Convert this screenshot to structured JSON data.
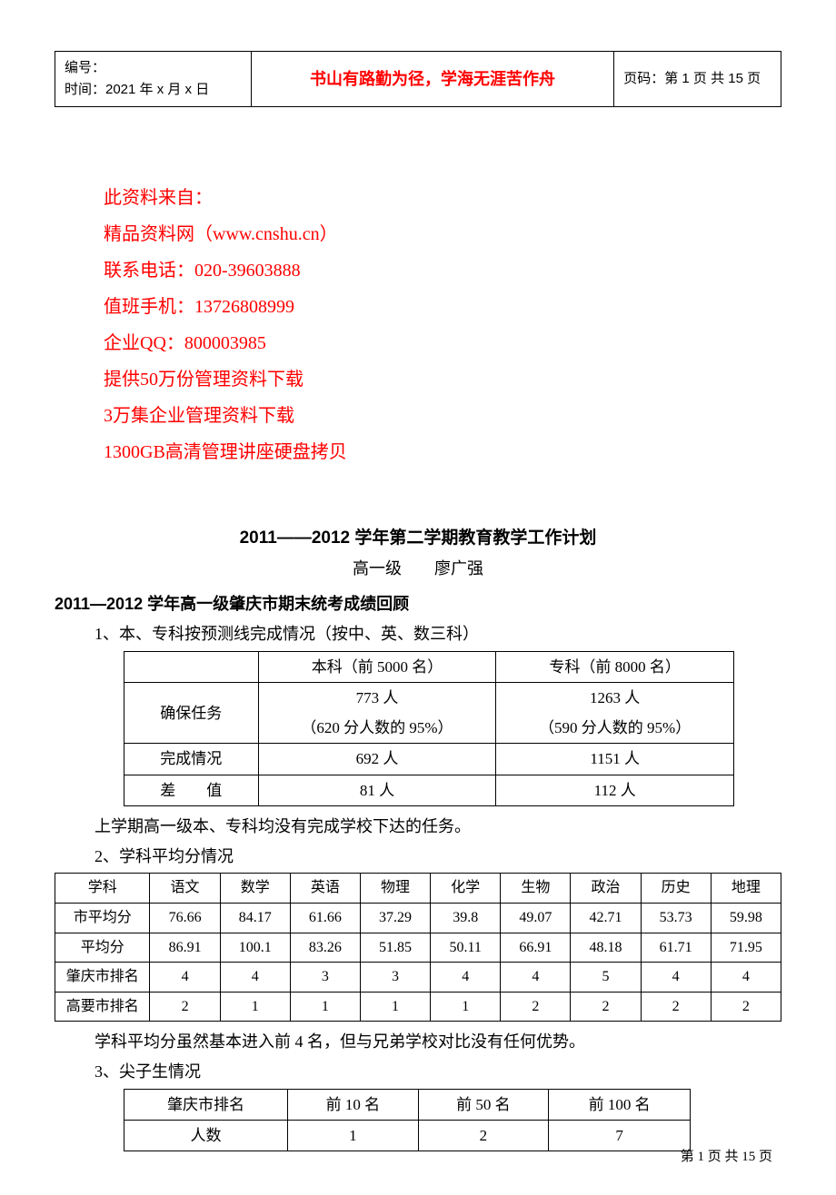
{
  "header": {
    "doc_id_label": "编号：",
    "date_label": "时间：2021 年 x 月 x 日",
    "motto": "书山有路勤为径，学海无涯苦作舟",
    "page_label": "页码：第 1 页 共 15 页"
  },
  "source_block": {
    "l1": "此资料来自：",
    "l2": "精品资料网（www.cnshu.cn）",
    "l3": "联系电话：020-39603888",
    "l4": "值班手机：13726808999",
    "l5": "企业QQ：800003985",
    "l6": "提供50万份管理资料下载",
    "l7": "3万集企业管理资料下载",
    "l8": "1300GB高清管理讲座硬盘拷贝"
  },
  "title": "2011——2012 学年第二学期教育教学工作计划",
  "subtitle": "高一级　　廖广强",
  "section1": "2011—2012 学年高一级肇庆市期末统考成绩回顾",
  "item1": "1、本、专科按预测线完成情况（按中、英、数三科）",
  "table1": {
    "h_col2": "本科（前 5000 名）",
    "h_col3": "专科（前 8000 名）",
    "r1_c1": "确保任务",
    "r1_c2a": "773 人",
    "r1_c2b": "（620 分人数的 95%）",
    "r1_c3a": "1263 人",
    "r1_c3b": "（590 分人数的 95%）",
    "r2_c1": "完成情况",
    "r2_c2": "692 人",
    "r2_c3": "1151 人",
    "r3_c1": "差　　值",
    "r3_c2": "81 人",
    "r3_c3": "112 人"
  },
  "note1": "上学期高一级本、专科均没有完成学校下达的任务。",
  "item2": "2、学科平均分情况",
  "table2": {
    "headers": [
      "学科",
      "语文",
      "数学",
      "英语",
      "物理",
      "化学",
      "生物",
      "政治",
      "历史",
      "地理"
    ],
    "rows": [
      [
        "市平均分",
        "76.66",
        "84.17",
        "61.66",
        "37.29",
        "39.8",
        "49.07",
        "42.71",
        "53.73",
        "59.98"
      ],
      [
        "平均分",
        "86.91",
        "100.1",
        "83.26",
        "51.85",
        "50.11",
        "66.91",
        "48.18",
        "61.71",
        "71.95"
      ],
      [
        "肇庆市排名",
        "4",
        "4",
        "3",
        "3",
        "4",
        "4",
        "5",
        "4",
        "4"
      ],
      [
        "高要市排名",
        "2",
        "1",
        "1",
        "1",
        "1",
        "2",
        "2",
        "2",
        "2"
      ]
    ]
  },
  "note2": "学科平均分虽然基本进入前 4 名，但与兄弟学校对比没有任何优势。",
  "item3": "3、尖子生情况",
  "table3": {
    "h1": "肇庆市排名",
    "h2": "前 10 名",
    "h3": "前 50 名",
    "h4": "前 100 名",
    "r1_c1": "人数",
    "r1_c2": "1",
    "r1_c3": "2",
    "r1_c4": "7"
  },
  "footer": "第 1 页 共 15 页"
}
